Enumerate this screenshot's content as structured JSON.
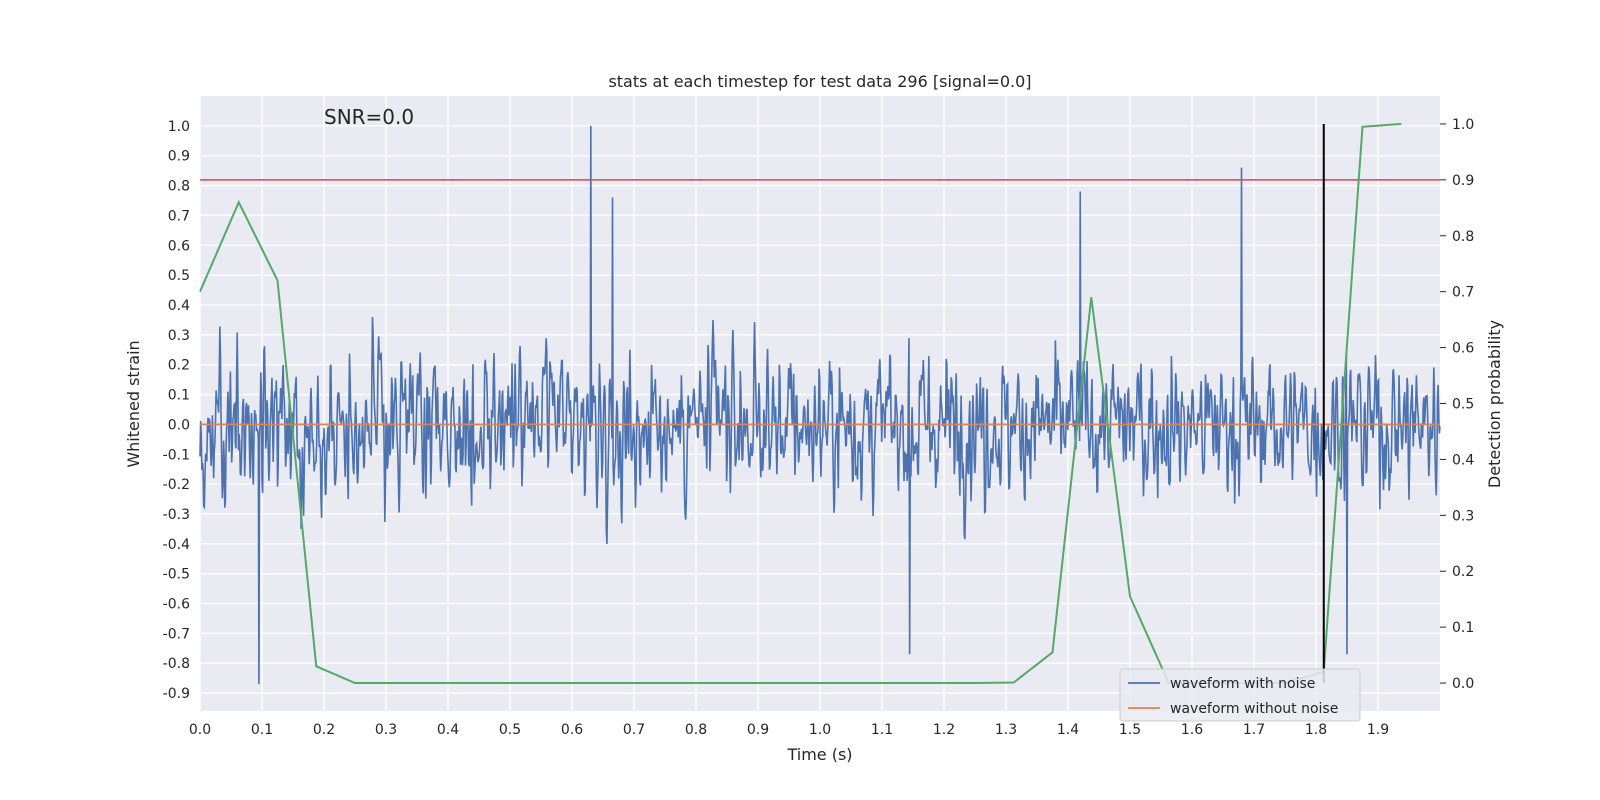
{
  "chart_data": {
    "type": "line",
    "title": "stats at each timestep for test data 296 [signal=0.0]",
    "annotation": "SNR=0.0",
    "xlabel": "Time (s)",
    "ylabel": "Whitened strain",
    "y2label": "Detection probability",
    "xlim": [
      0.0,
      2.0
    ],
    "ylim": [
      -0.96,
      1.1
    ],
    "y2lim": [
      -0.05,
      1.05
    ],
    "x_ticks": [
      "0.0",
      "0.1",
      "0.2",
      "0.3",
      "0.4",
      "0.5",
      "0.6",
      "0.7",
      "0.8",
      "0.9",
      "1.0",
      "1.1",
      "1.2",
      "1.3",
      "1.4",
      "1.5",
      "1.6",
      "1.7",
      "1.8",
      "1.9"
    ],
    "y_ticks": [
      "1.0",
      "0.9",
      "0.8",
      "0.7",
      "0.6",
      "0.5",
      "0.4",
      "0.3",
      "0.2",
      "0.1",
      "0.0",
      "-0.1",
      "-0.2",
      "-0.3",
      "-0.4",
      "-0.5",
      "-0.6",
      "-0.7",
      "-0.8",
      "-0.9"
    ],
    "y2_ticks": [
      "1.0",
      "0.9",
      "0.8",
      "0.7",
      "0.6",
      "0.5",
      "0.4",
      "0.3",
      "0.2",
      "0.1",
      "0.0"
    ],
    "grid": true,
    "legend_position": "lower-right",
    "colors": {
      "noise": "#4c72b0",
      "clean": "#dd8452",
      "probability": "#55a868",
      "threshold": "#c44e52",
      "marker": "#000000",
      "background": "#eaeaf2",
      "grid": "#ffffff"
    },
    "series": [
      {
        "name": "waveform with noise",
        "axis": "left",
        "note": "noisy strain, ~2000 samples over 0-2 s, amplitude mostly within [-0.6, 0.6]",
        "peaks": [
          {
            "x": 0.095,
            "y": -0.87
          },
          {
            "x": 0.63,
            "y": 1.0
          },
          {
            "x": 0.665,
            "y": 0.76
          },
          {
            "x": 1.68,
            "y": 0.86
          },
          {
            "x": 1.42,
            "y": 0.78
          },
          {
            "x": 1.145,
            "y": -0.77
          },
          {
            "x": 1.85,
            "y": -0.77
          }
        ]
      },
      {
        "name": "waveform without noise",
        "axis": "left",
        "x": [
          0.0,
          2.0
        ],
        "y": [
          0.0,
          0.0
        ]
      },
      {
        "name": "",
        "axis": "right",
        "x": [
          0.0,
          0.0625,
          0.125,
          0.1875,
          0.25,
          0.3125,
          0.375,
          0.4375,
          0.5,
          0.5625,
          0.625,
          0.6875,
          0.75,
          0.8125,
          0.875,
          0.9375,
          1.0,
          1.0625,
          1.125,
          1.1875,
          1.25,
          1.3125,
          1.375,
          1.4375,
          1.5,
          1.5625,
          1.625,
          1.6875,
          1.75,
          1.8125,
          1.875,
          1.9375
        ],
        "y": [
          0.7,
          0.86,
          0.72,
          0.03,
          0.0,
          0.0,
          0.0,
          0.0,
          0.0,
          0.0,
          0.0,
          0.0,
          0.0,
          0.0,
          0.0,
          0.0,
          0.0,
          0.0,
          0.0,
          0.0,
          0.0,
          0.001,
          0.055,
          0.69,
          0.155,
          0.0,
          0.0,
          0.0,
          0.0,
          0.02,
          0.995,
          1.0
        ]
      }
    ],
    "threshold_y2": 0.9,
    "marker_x": 1.8125,
    "marker_y_range": [
      0.0,
      1.0
    ],
    "legend": [
      "waveform with noise",
      "waveform without noise"
    ]
  }
}
